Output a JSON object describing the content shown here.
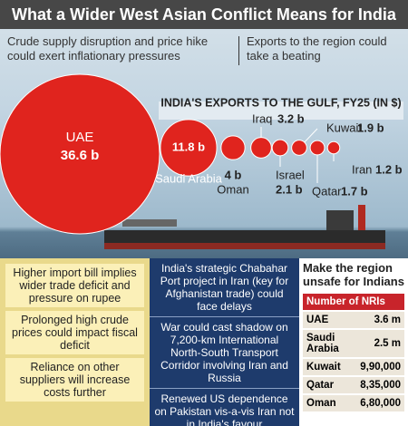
{
  "title": "What a Wider West Asian Conflict Means for India",
  "header": {
    "left": "Crude supply disruption and price hike could exert inflationary pressures",
    "right": "Exports to the region could take a beating"
  },
  "chart_data": {
    "type": "bubble",
    "title": "INDIA'S EXPORTS TO THE GULF, FY25 (IN $)",
    "categories": [
      "UAE",
      "Saudi Arabia",
      "Oman",
      "Iraq",
      "Israel",
      "Kuwait",
      "Qatar",
      "Iran"
    ],
    "values": [
      36.6,
      11.8,
      4,
      3.2,
      2.1,
      1.9,
      1.7,
      1.2
    ],
    "value_labels": [
      "36.6 b",
      "11.8 b",
      "4 b",
      "3.2 b",
      "2.1 b",
      "1.9 b",
      "1.7 b",
      "1.2 b"
    ],
    "color": "#e0241e"
  },
  "notes": [
    "Higher import bill implies wider trade deficit and pressure on rupee",
    "Prolonged high crude prices could impact fiscal deficit",
    "Reliance on other suppliers will increase costs further"
  ],
  "risks": [
    "India's strategic Chabahar Port project in Iran (key for Afghanistan trade) could face delays",
    "War could cast shadow on 7,200-km International North-South Transport Corridor involving Iran and Russia",
    "Renewed US dependence on Pakistan vis-a-vis Iran not in India's favour"
  ],
  "nri": {
    "title": "Make the region unsafe for Indians",
    "header": "Number of NRIs",
    "rows": [
      [
        "UAE",
        "3.6 m"
      ],
      [
        "Saudi Arabia",
        "2.5 m"
      ],
      [
        "Kuwait",
        "9,90,000"
      ],
      [
        "Qatar",
        "8,35,000"
      ],
      [
        "Oman",
        "6,80,000"
      ]
    ]
  }
}
